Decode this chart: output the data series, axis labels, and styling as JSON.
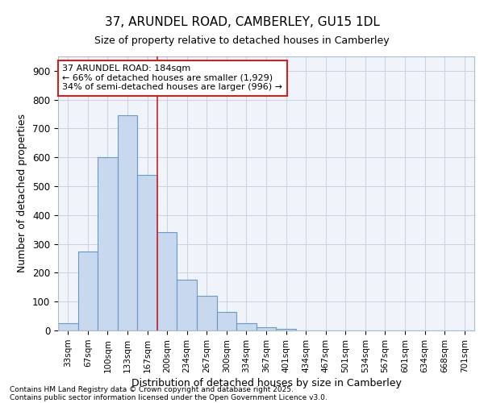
{
  "title1": "37, ARUNDEL ROAD, CAMBERLEY, GU15 1DL",
  "title2": "Size of property relative to detached houses in Camberley",
  "xlabel": "Distribution of detached houses by size in Camberley",
  "ylabel": "Number of detached properties",
  "categories": [
    "33sqm",
    "67sqm",
    "100sqm",
    "133sqm",
    "167sqm",
    "200sqm",
    "234sqm",
    "267sqm",
    "300sqm",
    "334sqm",
    "367sqm",
    "401sqm",
    "434sqm",
    "467sqm",
    "501sqm",
    "534sqm",
    "567sqm",
    "601sqm",
    "634sqm",
    "668sqm",
    "701sqm"
  ],
  "values": [
    25,
    275,
    600,
    745,
    540,
    340,
    175,
    120,
    65,
    25,
    10,
    5,
    0,
    0,
    0,
    0,
    0,
    0,
    0,
    0,
    0
  ],
  "bar_color": "#c8d8ee",
  "bar_edge_color": "#6699cc",
  "red_line_color": "#cc2222",
  "red_line_x": 4.5,
  "annotation_text_line1": "37 ARUNDEL ROAD: 184sqm",
  "annotation_text_line2": "← 66% of detached houses are smaller (1,929)",
  "annotation_text_line3": "34% of semi-detached houses are larger (996) →",
  "annotation_box_facecolor": "#ffffff",
  "annotation_box_edgecolor": "#cc2222",
  "ylim": [
    0,
    950
  ],
  "yticks": [
    0,
    100,
    200,
    300,
    400,
    500,
    600,
    700,
    800,
    900
  ],
  "footer1": "Contains HM Land Registry data © Crown copyright and database right 2025.",
  "footer2": "Contains public sector information licensed under the Open Government Licence v3.0.",
  "fig_bg_color": "#ffffff",
  "plot_bg_color": "#f0f4fa",
  "grid_color": "#c8d4e0",
  "title1_fontsize": 11,
  "title2_fontsize": 9
}
